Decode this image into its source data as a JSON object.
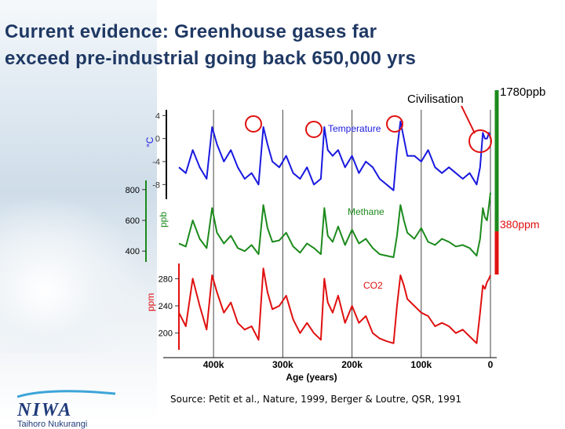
{
  "slide": {
    "title_line1": "Current evidence: Greenhouse gases far",
    "title_line2": "exceed pre-industrial going back 650,000 yrs",
    "source": "Source: Petit et al., Nature, 1999, Berger & Loutre, QSR, 1991",
    "logo_text": "NIWA",
    "logo_subtitle": "Taihoro Nukurangi"
  },
  "colors": {
    "temperature": "#1a1adf",
    "methane": "#1c8a1c",
    "co2": "#e01010",
    "axis_red": "#e01010",
    "highlight": "#e01010",
    "title": "#1f3864"
  },
  "chart_data": {
    "type": "line",
    "title": "",
    "xlabel": "Age (years)",
    "x_ticks": [
      "400k",
      "300k",
      "200k",
      "100k",
      "0"
    ],
    "xlim_kyr": [
      450,
      0
    ],
    "annotations": {
      "civilisation": "Civilisation",
      "methane_now": "1780ppb",
      "co2_now": "380ppm"
    },
    "series": [
      {
        "name": "Temperature",
        "unit_label": "°C",
        "ylim": [
          -10,
          5
        ],
        "y_ticks": [
          4,
          0,
          -4,
          -8
        ],
        "y_tick_labels": [
          "4",
          "0",
          "-4",
          "-8"
        ],
        "x_kyr": [
          450,
          440,
          430,
          420,
          410,
          402,
          395,
          385,
          375,
          365,
          355,
          345,
          335,
          328,
          322,
          315,
          305,
          295,
          285,
          275,
          265,
          255,
          245,
          240,
          235,
          228,
          220,
          210,
          200,
          190,
          180,
          170,
          160,
          150,
          140,
          135,
          130,
          125,
          120,
          110,
          100,
          90,
          80,
          70,
          60,
          50,
          40,
          30,
          20,
          15,
          11,
          8,
          5,
          2,
          0
        ],
        "values": [
          -5,
          -6,
          -2,
          -5,
          -7,
          2,
          -1,
          -4,
          -2,
          -5,
          -7,
          -6,
          -8,
          2,
          -1,
          -4,
          -5,
          -3,
          -6,
          -7,
          -5,
          -8,
          -7,
          2,
          -2,
          -3,
          -2,
          -5,
          -3,
          -6,
          -4,
          -5,
          -7,
          -8,
          -9,
          -2,
          3,
          0,
          -3,
          -3,
          -4,
          -2,
          -5,
          -6,
          -5,
          -6,
          -7,
          -6,
          -8,
          -5,
          1,
          0,
          0,
          1,
          0
        ]
      },
      {
        "name": "Methane",
        "unit_label": "ppb",
        "ylim": [
          350,
          850
        ],
        "y_ticks": [
          800,
          600,
          400
        ],
        "y_tick_labels": [
          "800",
          "600",
          "400"
        ],
        "x_kyr": [
          450,
          440,
          430,
          420,
          410,
          402,
          395,
          385,
          375,
          365,
          355,
          345,
          335,
          328,
          322,
          315,
          305,
          295,
          285,
          275,
          265,
          255,
          245,
          240,
          235,
          228,
          220,
          210,
          200,
          190,
          180,
          170,
          160,
          150,
          140,
          135,
          130,
          125,
          120,
          110,
          100,
          90,
          80,
          70,
          60,
          50,
          40,
          30,
          20,
          15,
          11,
          8,
          5,
          2,
          0
        ],
        "values": [
          450,
          430,
          600,
          480,
          420,
          680,
          520,
          450,
          500,
          420,
          400,
          440,
          380,
          700,
          550,
          460,
          470,
          520,
          430,
          390,
          450,
          420,
          380,
          680,
          500,
          460,
          560,
          440,
          540,
          450,
          480,
          420,
          380,
          370,
          360,
          500,
          700,
          600,
          520,
          480,
          550,
          460,
          440,
          480,
          460,
          430,
          440,
          420,
          370,
          480,
          680,
          620,
          600,
          700,
          780
        ]
      },
      {
        "name": "CO2",
        "unit_label": "ppm",
        "ylim": [
          180,
          300
        ],
        "y_ticks": [
          280,
          240,
          200
        ],
        "y_tick_labels": [
          "280",
          "240",
          "200"
        ],
        "x_kyr": [
          450,
          440,
          430,
          420,
          410,
          402,
          395,
          385,
          375,
          365,
          355,
          345,
          335,
          328,
          322,
          315,
          305,
          295,
          285,
          275,
          265,
          255,
          245,
          240,
          235,
          228,
          220,
          210,
          200,
          190,
          180,
          170,
          160,
          150,
          140,
          135,
          130,
          125,
          120,
          110,
          100,
          90,
          80,
          70,
          60,
          50,
          40,
          30,
          20,
          15,
          11,
          8,
          5,
          2,
          0
        ],
        "values": [
          230,
          210,
          280,
          240,
          205,
          285,
          260,
          230,
          245,
          215,
          205,
          210,
          190,
          295,
          260,
          235,
          240,
          255,
          220,
          200,
          215,
          200,
          190,
          280,
          245,
          230,
          255,
          215,
          240,
          215,
          225,
          200,
          192,
          188,
          185,
          240,
          285,
          270,
          250,
          240,
          230,
          225,
          210,
          215,
          210,
          200,
          205,
          195,
          185,
          230,
          270,
          265,
          275,
          280,
          285
        ]
      }
    ]
  }
}
